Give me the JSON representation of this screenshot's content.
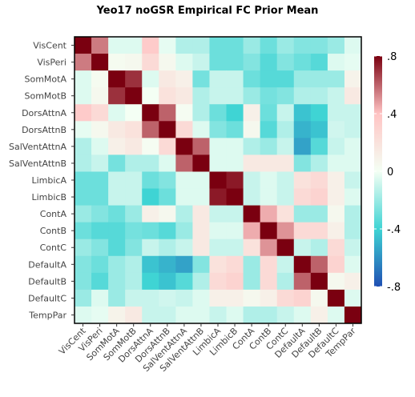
{
  "chart_data": {
    "type": "heatmap",
    "title": "Yeo17 noGSR Empirical FC Prior Mean",
    "labels": [
      "VisCent",
      "VisPeri",
      "SomMotA",
      "SomMotB",
      "DorsAttnA",
      "DorsAttnB",
      "SalVentAttnA",
      "SalVentAttnB",
      "LimbicA",
      "LimbicB",
      "ContA",
      "ContB",
      "ContC",
      "DefaultA",
      "DefaultB",
      "DefaultC",
      "TempPar"
    ],
    "matrix": [
      [
        1.0,
        0.55,
        -0.05,
        -0.05,
        0.35,
        -0.03,
        -0.15,
        -0.15,
        -0.3,
        -0.3,
        -0.2,
        -0.3,
        -0.2,
        -0.25,
        -0.25,
        -0.2,
        -0.05
      ],
      [
        0.55,
        1.0,
        0.03,
        0.05,
        0.25,
        0.05,
        -0.05,
        -0.1,
        -0.3,
        -0.3,
        -0.25,
        -0.35,
        -0.25,
        -0.3,
        -0.35,
        -0.05,
        -0.03
      ],
      [
        -0.05,
        0.03,
        1.0,
        0.7,
        -0.05,
        0.15,
        0.1,
        -0.28,
        -0.1,
        -0.1,
        -0.3,
        -0.35,
        -0.35,
        -0.2,
        -0.2,
        -0.2,
        0.08
      ],
      [
        -0.05,
        0.05,
        0.7,
        1.0,
        0.0,
        0.2,
        0.15,
        -0.15,
        -0.1,
        -0.1,
        -0.2,
        -0.28,
        -0.25,
        -0.15,
        -0.15,
        -0.1,
        0.15
      ],
      [
        0.35,
        0.25,
        -0.05,
        0.0,
        1.0,
        0.6,
        0.02,
        -0.15,
        -0.3,
        -0.4,
        0.1,
        -0.3,
        -0.1,
        -0.45,
        -0.4,
        -0.1,
        -0.1
      ],
      [
        -0.03,
        0.05,
        0.15,
        0.2,
        0.6,
        1.0,
        0.25,
        -0.05,
        -0.25,
        -0.3,
        0.05,
        -0.35,
        -0.15,
        -0.5,
        -0.45,
        -0.08,
        -0.1
      ],
      [
        -0.15,
        -0.05,
        0.1,
        0.15,
        0.02,
        0.25,
        1.0,
        0.6,
        -0.05,
        -0.05,
        -0.15,
        -0.2,
        -0.1,
        -0.55,
        -0.35,
        -0.1,
        -0.05
      ],
      [
        -0.15,
        -0.1,
        -0.28,
        -0.15,
        -0.15,
        -0.05,
        0.6,
        1.0,
        -0.05,
        -0.05,
        0.15,
        0.15,
        0.15,
        -0.25,
        -0.15,
        -0.05,
        -0.05
      ],
      [
        -0.3,
        -0.3,
        -0.1,
        -0.1,
        -0.3,
        -0.25,
        -0.05,
        -0.05,
        1.0,
        0.75,
        -0.1,
        -0.05,
        -0.1,
        0.2,
        0.25,
        0.1,
        -0.1
      ],
      [
        -0.3,
        -0.3,
        -0.1,
        -0.1,
        -0.4,
        -0.3,
        -0.05,
        -0.05,
        0.75,
        1.0,
        -0.1,
        -0.05,
        -0.1,
        0.25,
        0.3,
        0.1,
        -0.05
      ],
      [
        -0.2,
        -0.25,
        -0.3,
        -0.2,
        0.1,
        0.05,
        -0.15,
        0.15,
        -0.1,
        -0.1,
        1.0,
        0.45,
        0.2,
        -0.2,
        -0.2,
        0.05,
        -0.15
      ],
      [
        -0.3,
        -0.35,
        -0.35,
        -0.28,
        -0.3,
        -0.35,
        -0.2,
        0.15,
        -0.05,
        -0.05,
        0.45,
        1.0,
        0.5,
        0.25,
        0.25,
        0.1,
        -0.15
      ],
      [
        -0.2,
        -0.25,
        -0.35,
        -0.25,
        -0.1,
        -0.15,
        -0.1,
        0.15,
        -0.1,
        -0.1,
        0.2,
        0.5,
        1.0,
        -0.1,
        -0.15,
        0.25,
        -0.1
      ],
      [
        -0.25,
        -0.3,
        -0.2,
        -0.15,
        -0.45,
        -0.5,
        -0.55,
        -0.25,
        0.2,
        0.25,
        -0.2,
        0.25,
        -0.1,
        1.0,
        0.6,
        0.3,
        -0.05
      ],
      [
        -0.25,
        -0.35,
        -0.2,
        -0.15,
        -0.4,
        -0.45,
        -0.35,
        -0.15,
        0.25,
        0.3,
        -0.2,
        0.25,
        -0.15,
        0.6,
        1.0,
        0.05,
        0.1
      ],
      [
        -0.2,
        -0.05,
        -0.2,
        -0.1,
        -0.1,
        -0.08,
        -0.1,
        -0.05,
        0.1,
        0.1,
        0.05,
        0.1,
        0.25,
        0.3,
        0.05,
        1.0,
        -0.05
      ],
      [
        -0.05,
        -0.03,
        0.08,
        0.15,
        -0.1,
        -0.1,
        -0.05,
        -0.05,
        -0.1,
        -0.05,
        -0.15,
        -0.15,
        -0.1,
        -0.05,
        0.1,
        -0.05,
        1.0
      ]
    ],
    "color_range": [
      -0.8,
      0.8
    ],
    "colorbar": {
      "ticks": [
        0.8,
        0.4,
        0,
        -0.4,
        -0.8
      ],
      "tick_labels": [
        ".8",
        ".4",
        "0",
        "-.4",
        "-.8"
      ]
    },
    "colors": {
      "neg_strong": "#1f4fb3",
      "neg_mid": "#3fd4d4",
      "zero": "#f4fff4",
      "pos_mid": "#ffc4c4",
      "pos_strong": "#7a0010"
    }
  }
}
